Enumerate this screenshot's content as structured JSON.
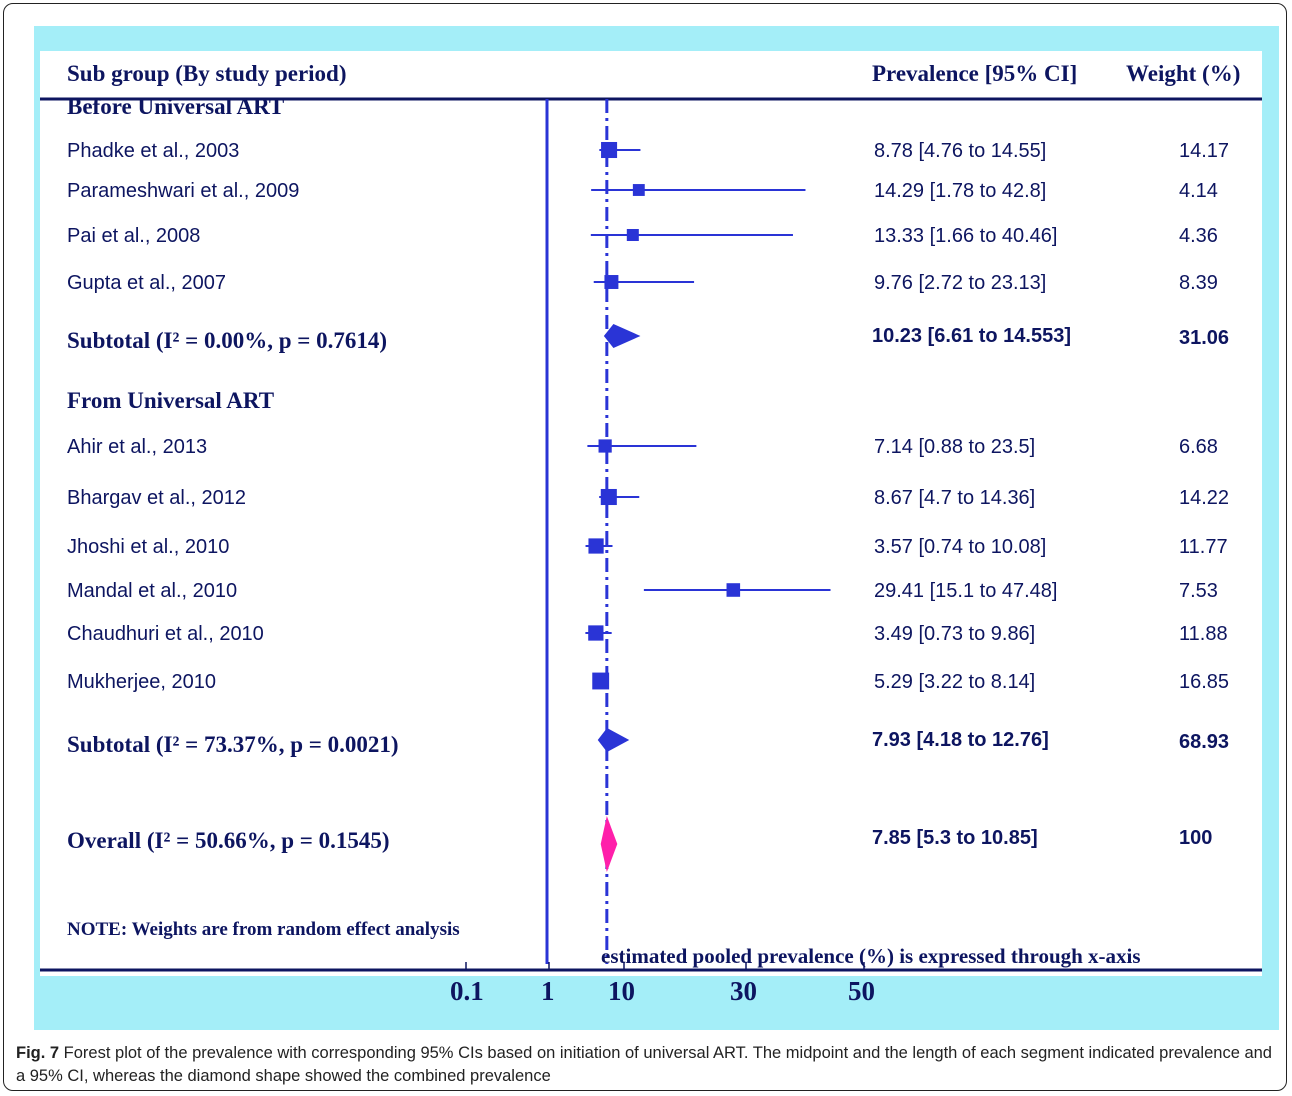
{
  "figure": {
    "caption_label": "Fig. 7",
    "caption_text": " Forest plot of the prevalence with corresponding 95% CIs based on initiation of universal ART. The midpoint and the length of each segment indicated prevalence and a 95% CI, whereas the diamond shape showed the combined prevalence"
  },
  "table": {
    "header_subgroup": "Sub group (By study period)",
    "header_prevalence": "Prevalence [95% CI]",
    "header_weight": "Weight (%)",
    "note": "NOTE: Weights are from random effect analysis",
    "axis_caption": "estimated pooled prevalence (%) is expressed through x-axis",
    "ticks": [
      "0.1",
      "1",
      "10",
      "30",
      "50"
    ]
  },
  "colors": {
    "panel_bg": "#a4eef8",
    "plot_bg": "#ffffff",
    "text": "#0d1560",
    "marker": "#2a34d6",
    "overall_diamond": "#ff1faa"
  },
  "chart_data": {
    "type": "forest",
    "pooled_reference": 7.85,
    "groups": [
      {
        "name": "Before Universal ART",
        "studies": [
          {
            "study": "Phadke et al., 2003",
            "estimate": 8.78,
            "ci": [
              4.76,
              14.55
            ],
            "ci_text": "8.78 [4.76 to 14.55]",
            "weight": "14.17"
          },
          {
            "study": "Parameshwari et al., 2009",
            "estimate": 14.29,
            "ci": [
              1.78,
              42.8
            ],
            "ci_text": "14.29 [1.78 to 42.8]",
            "weight": "4.14"
          },
          {
            "study": "Pai et al., 2008",
            "estimate": 13.33,
            "ci": [
              1.66,
              40.46
            ],
            "ci_text": "13.33 [1.66 to 40.46]",
            "weight": "4.36"
          },
          {
            "study": "Gupta et al., 2007",
            "estimate": 9.76,
            "ci": [
              2.72,
              23.13
            ],
            "ci_text": "9.76 [2.72 to 23.13]",
            "weight": "8.39"
          }
        ],
        "subtotal": {
          "i2": "0.00%",
          "p": "0.7614",
          "estimate": 10.23,
          "ci": [
            6.61,
            14.553
          ],
          "ci_text": "10.23 [6.61 to 14.553]",
          "weight": "31.06"
        }
      },
      {
        "name": "From Universal ART",
        "studies": [
          {
            "study": "Ahir et al., 2013",
            "estimate": 7.14,
            "ci": [
              0.88,
              23.5
            ],
            "ci_text": "7.14 [0.88 to 23.5]",
            "weight": "6.68"
          },
          {
            "study": "Bhargav et al., 2012",
            "estimate": 8.67,
            "ci": [
              4.7,
              14.36
            ],
            "ci_text": "8.67 [4.7 to 14.36]",
            "weight": "14.22"
          },
          {
            "study": "Jhoshi et al., 2010",
            "estimate": 3.57,
            "ci": [
              0.74,
              10.08
            ],
            "ci_text": "3.57 [0.74 to 10.08]",
            "weight": "11.77"
          },
          {
            "study": "Mandal et al., 2010",
            "estimate": 29.41,
            "ci": [
              15.1,
              47.48
            ],
            "ci_text": "29.41 [15.1 to 47.48]",
            "weight": "7.53"
          },
          {
            "study": "Chaudhuri et al., 2010",
            "estimate": 3.49,
            "ci": [
              0.73,
              9.86
            ],
            "ci_text": "3.49 [0.73 to 9.86]",
            "weight": "11.88"
          },
          {
            "study": "Mukherjee, 2010",
            "estimate": 5.29,
            "ci": [
              3.22,
              8.14
            ],
            "ci_text": "5.29 [3.22 to 8.14]",
            "weight": "16.85"
          }
        ],
        "subtotal": {
          "i2": "73.37%",
          "p": "0.0021",
          "estimate": 7.93,
          "ci": [
            4.18,
            12.76
          ],
          "ci_text": "7.93 [4.18 to 12.76]",
          "weight": "68.93"
        }
      }
    ],
    "overall": {
      "i2": "50.66%",
      "p": "0.1545",
      "estimate": 7.85,
      "ci": [
        5.3,
        10.85
      ],
      "ci_text": "7.85 [5.3 to 10.85]",
      "weight": "100"
    }
  }
}
